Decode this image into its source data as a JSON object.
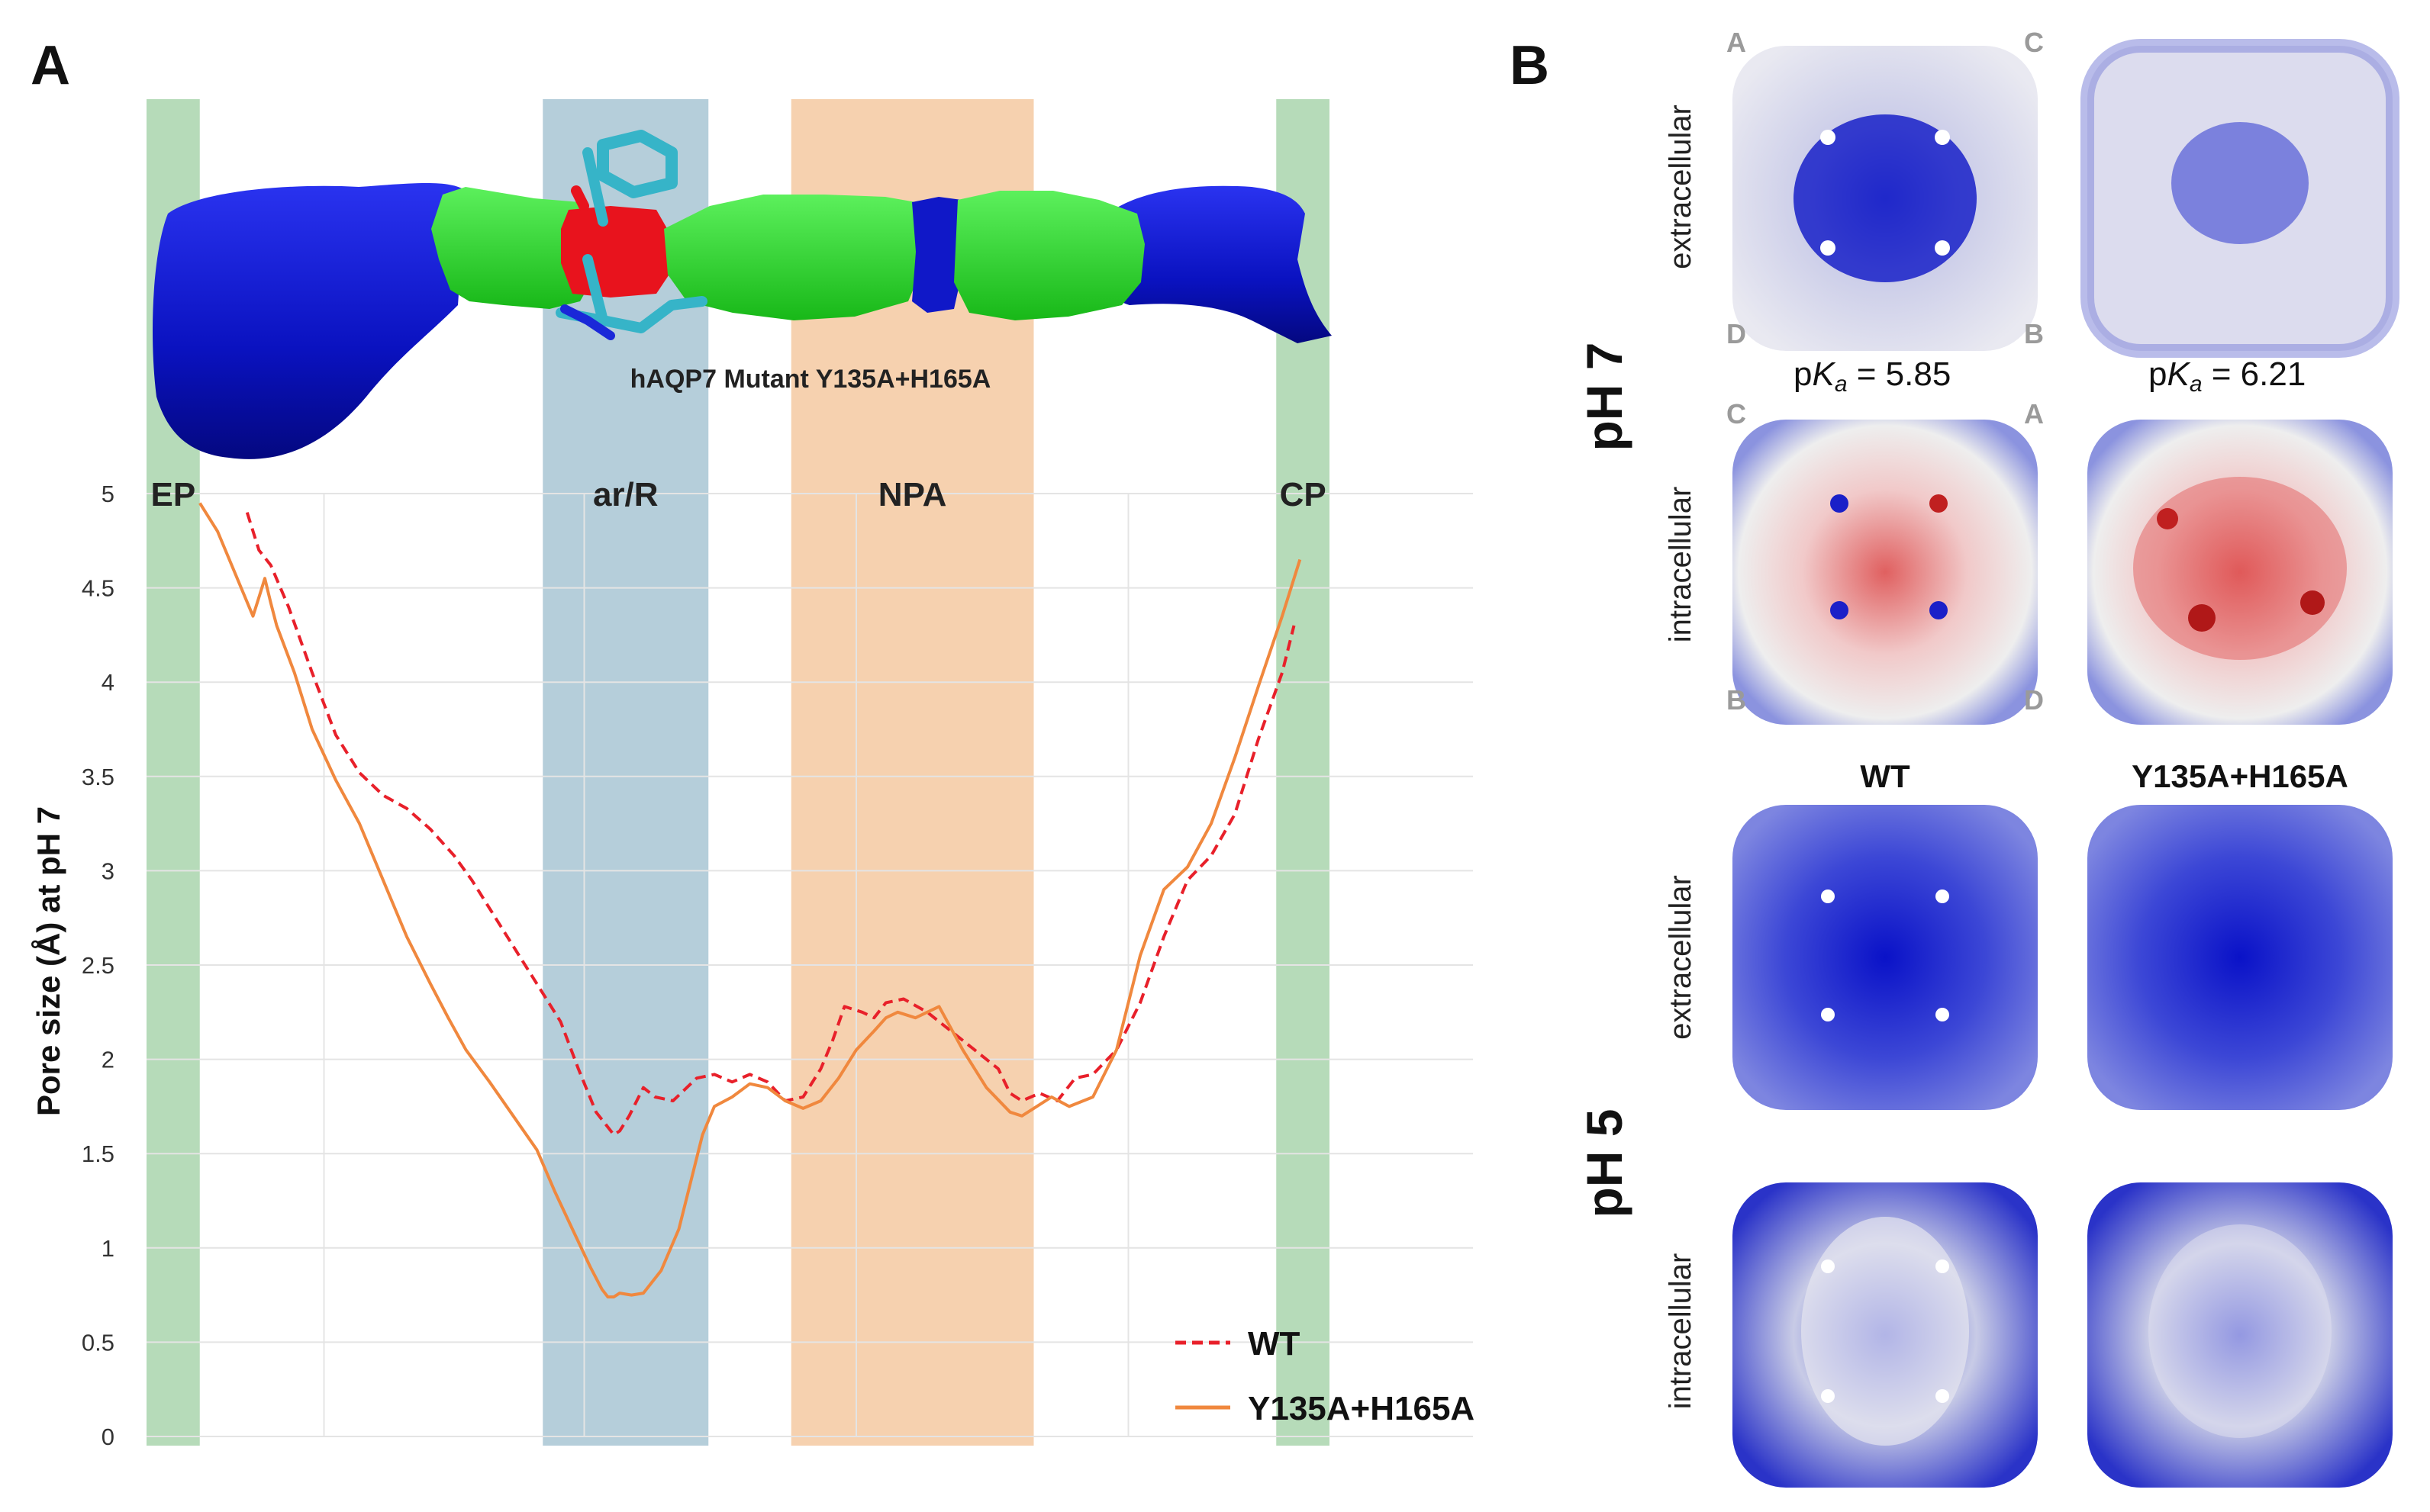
{
  "panel_a": {
    "letter": "A",
    "structure_caption": "hAQP7 Mutant Y135A+H165A",
    "chart_data": {
      "type": "line",
      "title": "",
      "xlabel": "",
      "ylabel": "Pore size (Å) at pH 7",
      "x_range": [
        0,
        100
      ],
      "ylim": [
        0,
        5
      ],
      "yticks": [
        0,
        0.5,
        1,
        1.5,
        2,
        2.5,
        3,
        3.5,
        4,
        4.5,
        5
      ],
      "ytick_labels": [
        "0",
        "0.5",
        "1",
        "1.5",
        "2",
        "2.5",
        "3",
        "3.5",
        "4",
        "4.5",
        "5"
      ],
      "grid": true,
      "legend_position": "bottom-right",
      "regions": [
        {
          "label": "EP",
          "x0": 0,
          "x1": 4.5,
          "color": "#a9d5ad"
        },
        {
          "label": "ar/R",
          "x0": 33.5,
          "x1": 47.5,
          "color": "#a8c6d4"
        },
        {
          "label": "NPA",
          "x0": 54.5,
          "x1": 75,
          "color": "#f4c9a1"
        },
        {
          "label": "CP",
          "x0": 95.5,
          "x1": 100,
          "color": "#a9d5ad"
        }
      ],
      "series": [
        {
          "name": "WT",
          "color": "#e8202a",
          "dash": "dashed",
          "x": [
            8.5,
            9.5,
            10.5,
            12,
            14,
            16,
            18,
            20,
            22,
            24,
            26,
            27.5,
            29,
            31,
            33,
            35,
            36.5,
            38,
            39.5,
            40,
            40.8,
            42,
            43,
            44.5,
            45.5,
            46.5,
            48,
            49.5,
            51,
            52.5,
            54,
            55.5,
            57,
            58,
            59,
            60.5,
            61.5,
            62.5,
            64,
            66,
            68,
            70,
            72,
            73,
            74,
            75.5,
            77,
            78.5,
            80,
            82,
            84,
            86,
            88,
            90,
            92,
            94,
            96,
            97
          ],
          "y": [
            4.9,
            4.7,
            4.62,
            4.4,
            4.05,
            3.72,
            3.52,
            3.4,
            3.33,
            3.22,
            3.08,
            2.95,
            2.8,
            2.6,
            2.4,
            2.2,
            1.95,
            1.72,
            1.6,
            1.62,
            1.7,
            1.85,
            1.8,
            1.78,
            1.84,
            1.9,
            1.92,
            1.88,
            1.92,
            1.88,
            1.78,
            1.8,
            1.95,
            2.1,
            2.28,
            2.25,
            2.22,
            2.3,
            2.32,
            2.25,
            2.15,
            2.05,
            1.95,
            1.82,
            1.78,
            1.82,
            1.78,
            1.9,
            1.92,
            2.05,
            2.3,
            2.65,
            2.95,
            3.08,
            3.3,
            3.7,
            4.05,
            4.3
          ]
        },
        {
          "name": "Y135A+H165A",
          "color": "#f0883e",
          "dash": "solid",
          "x": [
            4.5,
            6,
            7,
            8,
            9,
            9.5,
            10,
            10.5,
            11,
            12.5,
            14,
            16,
            18,
            20,
            22,
            24,
            25.5,
            27,
            29,
            31,
            33,
            34.5,
            36,
            37.5,
            38.5,
            39,
            39.5,
            40,
            41,
            42,
            43.5,
            45,
            46,
            47,
            48,
            49.5,
            51,
            52.5,
            54,
            55.5,
            57,
            58.5,
            60,
            61.5,
            62.5,
            63.5,
            65,
            67,
            69,
            71,
            73,
            74,
            75,
            76.5,
            78,
            80,
            82,
            84,
            86,
            88,
            90,
            92,
            94,
            96,
            97.5
          ],
          "y": [
            4.95,
            4.8,
            4.65,
            4.5,
            4.35,
            4.45,
            4.55,
            4.42,
            4.3,
            4.05,
            3.75,
            3.48,
            3.25,
            2.95,
            2.65,
            2.4,
            2.22,
            2.05,
            1.88,
            1.7,
            1.52,
            1.3,
            1.1,
            0.9,
            0.78,
            0.74,
            0.74,
            0.76,
            0.75,
            0.76,
            0.88,
            1.1,
            1.35,
            1.6,
            1.75,
            1.8,
            1.87,
            1.85,
            1.78,
            1.74,
            1.78,
            1.9,
            2.05,
            2.15,
            2.22,
            2.25,
            2.22,
            2.28,
            2.05,
            1.85,
            1.72,
            1.7,
            1.74,
            1.8,
            1.75,
            1.8,
            2.05,
            2.55,
            2.9,
            3.02,
            3.25,
            3.6,
            3.98,
            4.35,
            4.65
          ]
        }
      ]
    }
  },
  "panel_b": {
    "letter": "B",
    "ph7_label": "pH 7",
    "ph5_label": "pH 5",
    "extracellular_label": "extracellular",
    "intracellular_label": "intracellular",
    "corners_top": [
      "A",
      "C",
      "D",
      "B"
    ],
    "corners_bottom": [
      "C",
      "A",
      "B",
      "D"
    ],
    "pka_prefix": "p",
    "pka_k": "K",
    "pka_sub": "a",
    "pka_values": [
      " = 5.85",
      " = 6.21"
    ],
    "column_titles": [
      "WT",
      "Y135A+H165A"
    ],
    "colors": {
      "positive": "#1a1fd0",
      "neutral": "#f2f2f2",
      "negative": "#d6262a"
    }
  }
}
